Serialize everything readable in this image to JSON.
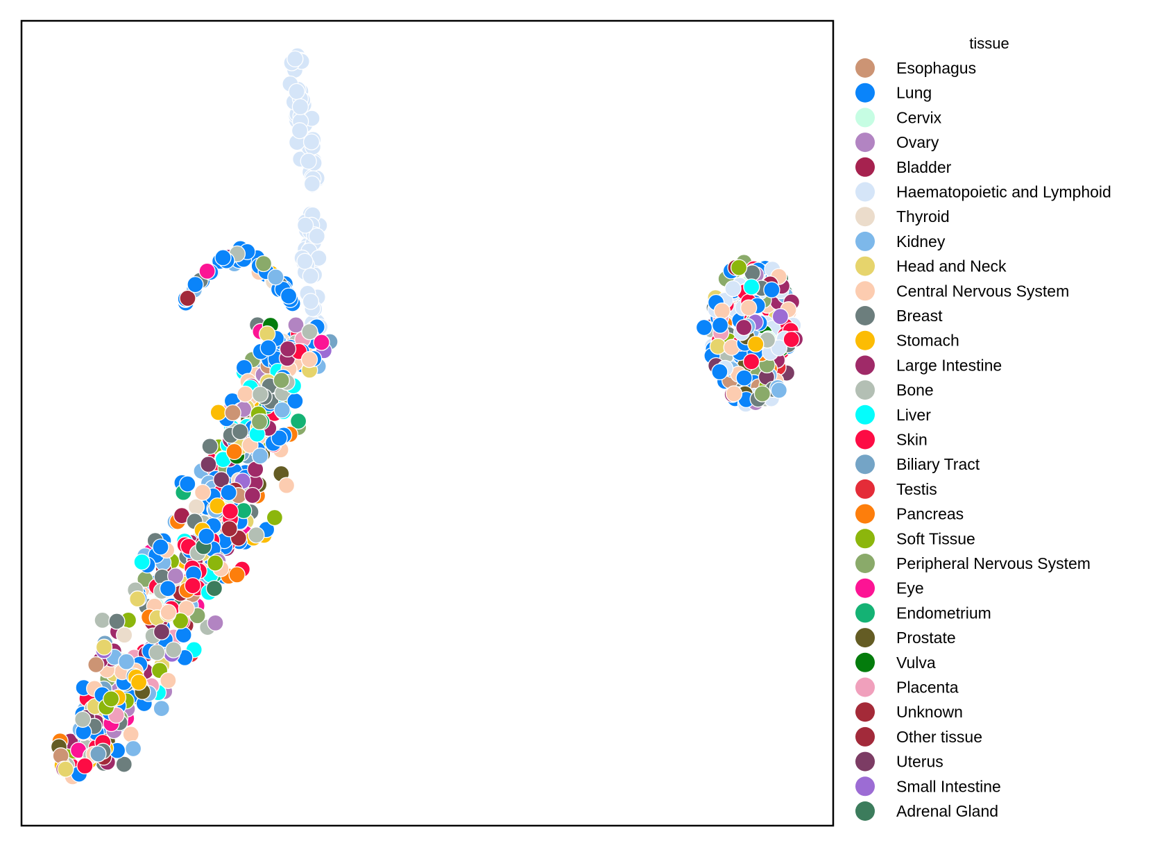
{
  "chart_data": {
    "type": "scatter",
    "title": "",
    "xlabel": "",
    "ylabel": "",
    "xlim": [
      0,
      100
    ],
    "ylim": [
      0,
      100
    ],
    "grid": false,
    "axes_ticks": false,
    "legend": {
      "title": "tissue",
      "placement": "outside-right"
    },
    "series": [
      {
        "name": "Esophagus",
        "color": "#cc9474"
      },
      {
        "name": "Lung",
        "color": "#0a84fa"
      },
      {
        "name": "Cervix",
        "color": "#c6fde3"
      },
      {
        "name": "Ovary",
        "color": "#b284c2"
      },
      {
        "name": "Bladder",
        "color": "#a6224f"
      },
      {
        "name": "Haematopoietic and Lymphoid",
        "color": "#d5e5f8"
      },
      {
        "name": "Thyroid",
        "color": "#ebdccb"
      },
      {
        "name": "Kidney",
        "color": "#7db8ea"
      },
      {
        "name": "Head and Neck",
        "color": "#e6d46c"
      },
      {
        "name": "Central Nervous System",
        "color": "#fcccb0"
      },
      {
        "name": "Breast",
        "color": "#6c7e7d"
      },
      {
        "name": "Stomach",
        "color": "#fcbc04"
      },
      {
        "name": "Large Intestine",
        "color": "#9f2a68"
      },
      {
        "name": "Bone",
        "color": "#b3bfb4"
      },
      {
        "name": "Liver",
        "color": "#04fdfc"
      },
      {
        "name": "Skin",
        "color": "#fd0c44"
      },
      {
        "name": "Biliary Tract",
        "color": "#74a4c6"
      },
      {
        "name": "Testis",
        "color": "#e42c38"
      },
      {
        "name": "Pancreas",
        "color": "#fd7e0c"
      },
      {
        "name": "Soft Tissue",
        "color": "#8cb60c"
      },
      {
        "name": "Peripheral Nervous System",
        "color": "#8aaa6a"
      },
      {
        "name": "Eye",
        "color": "#fc1494"
      },
      {
        "name": "Endometrium",
        "color": "#14b274"
      },
      {
        "name": "Prostate",
        "color": "#645c24"
      },
      {
        "name": "Vulva",
        "color": "#047c0c"
      },
      {
        "name": "Placenta",
        "color": "#f0a0bc"
      },
      {
        "name": "Unknown",
        "color": "#a42a38"
      },
      {
        "name": "Other tissue",
        "color": "#a22a3a"
      },
      {
        "name": "Uterus",
        "color": "#7c3c64"
      },
      {
        "name": "Small Intestine",
        "color": "#9c6cd4"
      },
      {
        "name": "Adrenal Gland",
        "color": "#3c7c5c"
      }
    ]
  }
}
